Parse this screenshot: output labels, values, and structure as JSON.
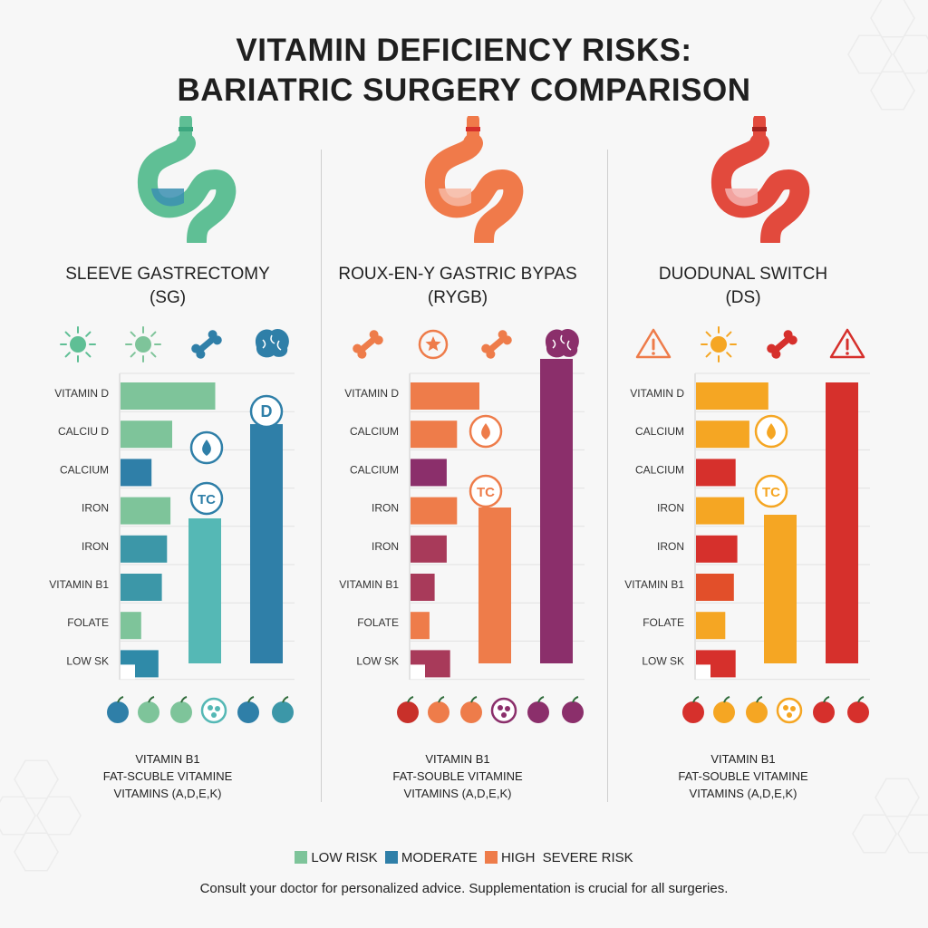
{
  "title": [
    "VITAMIN DEFICIENCY RISKS:",
    "BARIATRIC SURGERY COMPARISON"
  ],
  "colors": {
    "low": "#7ec49a",
    "moderate": "#2f7fa8",
    "high": "#ee7c4a",
    "severe": "#8b2f6b",
    "ds_orange": "#f5a623",
    "ds_red": "#d6302c",
    "teal": "#55b8b5"
  },
  "panels": [
    {
      "name_line1": "SLEEVE GASTRECTOMY",
      "name_line2": "(SG)",
      "footnote": [
        "VITAMIN B1",
        "FAT-SCUBLE VITAMINE",
        "VITAMINS (A,D,E,K)"
      ],
      "top_icons": [
        "sun-icon",
        "sun-icon",
        "bone-icon",
        "brain-icon"
      ],
      "circle_icons": [
        {
          "kind": "letter",
          "text": "D"
        },
        {
          "kind": "drop"
        },
        {
          "kind": "text",
          "text": "TC"
        }
      ],
      "bottom_icons": [
        "apple-icon",
        "apple-icon",
        "apple-icon",
        "vegetable-icon",
        "apple-icon",
        "apple-icon"
      ]
    },
    {
      "name_line1": "ROUX-EN-Y GASTRIC BYPAS",
      "name_line2": "(RYGB)",
      "footnote": [
        "VITAMIN B1",
        "FAT-SOUBLE VITAMINE",
        "VITAMINS (A,D,E,K)"
      ],
      "top_icons": [
        "bone-icon",
        "star-icon",
        "bone-icon",
        "brain-icon"
      ],
      "circle_icons": [
        {
          "kind": "drop"
        },
        {
          "kind": "text",
          "text": "TC"
        }
      ],
      "bottom_icons": [
        "apple-icon",
        "apple-icon",
        "apple-icon",
        "vegetable-icon",
        "apple-icon",
        "apple-icon"
      ]
    },
    {
      "name_line1": "DUODUNAL SWITCH",
      "name_line2": "(DS)",
      "footnote": [
        "VITAMIN B1",
        "FAT-SOUBLE VITAMINE",
        "VITAMINS (A,D,E,K)"
      ],
      "top_icons": [
        "warning-icon",
        "sun-icon",
        "bone-icon",
        "warning-icon"
      ],
      "circle_icons": [
        {
          "kind": "drop"
        },
        {
          "kind": "text",
          "text": "TC"
        }
      ],
      "bottom_icons": [
        "apple-icon",
        "apple-icon",
        "apple-icon",
        "vegetable-icon",
        "apple-icon",
        "apple-icon"
      ]
    }
  ],
  "chart_data": [
    {
      "type": "bar",
      "orientation": "horizontal",
      "title": "SLEEVE GASTRECTOMY (SG)",
      "categories": [
        "VITAMIN D",
        "CALCIU D",
        "CALCIUM",
        "IRON",
        "IRON",
        "VITAMIN B1",
        "FOLATE",
        "LOW SK"
      ],
      "values": [
        55,
        30,
        18,
        29,
        27,
        24,
        12,
        22
      ],
      "colors": [
        "#7ec49a",
        "#7ec49a",
        "#2f7fa8",
        "#7ec49a",
        "#3c97a8",
        "#3c97a8",
        "#7ec49a",
        "#2f8aa8"
      ],
      "vertical_bars": [
        {
          "value": 80,
          "color": "#55b8b5"
        },
        {
          "value": 132,
          "color": "#2f7fa8"
        }
      ],
      "xlim": [
        0,
        100
      ]
    },
    {
      "type": "bar",
      "orientation": "horizontal",
      "title": "ROUX-EN-Y GASTRIC BYPAS (RYGB)",
      "categories": [
        "VITAMIN D",
        "CALCIUM",
        "CALCIUM",
        "IRON",
        "IRON",
        "VITAMIN B1",
        "FOLATE",
        "LOW SK"
      ],
      "values": [
        40,
        27,
        21,
        27,
        21,
        14,
        11,
        23
      ],
      "colors": [
        "#ee7c4a",
        "#ee7c4a",
        "#8b2f6b",
        "#ee7c4a",
        "#a83a5a",
        "#a83a5a",
        "#ee7c4a",
        "#a83a5a"
      ],
      "vertical_bars": [
        {
          "value": 86,
          "color": "#ee7c4a"
        },
        {
          "value": 168,
          "color": "#8b2f6b"
        }
      ],
      "xlim": [
        0,
        100
      ]
    },
    {
      "type": "bar",
      "orientation": "horizontal",
      "title": "DUODUNAL SWITCH (DS)",
      "categories": [
        "VITAMIN D",
        "CALCIUM",
        "CALCIUM",
        "IRON",
        "IRON",
        "VITAMIN B1",
        "FOLATE",
        "LOW SK"
      ],
      "values": [
        42,
        31,
        23,
        28,
        24,
        22,
        17,
        23
      ],
      "colors": [
        "#f5a623",
        "#f5a623",
        "#d6302c",
        "#f5a623",
        "#d6302c",
        "#e24f2a",
        "#f5a623",
        "#d6302c"
      ],
      "vertical_bars": [
        {
          "value": 82,
          "color": "#f5a623"
        },
        {
          "value": 155,
          "color": "#d6302c"
        }
      ],
      "xlim": [
        0,
        100
      ]
    }
  ],
  "legend": [
    {
      "label": "LOW RISK",
      "color": "#7ec49a"
    },
    {
      "label": "MODERATE",
      "color": "#2f7fa8"
    },
    {
      "label": "HIGH",
      "color": "#ee7c4a"
    },
    {
      "label": "SEVERE RISK",
      "color": ""
    }
  ],
  "note": "Consult your doctor for personalized advice. Supplementation is crucial for all surgeries."
}
